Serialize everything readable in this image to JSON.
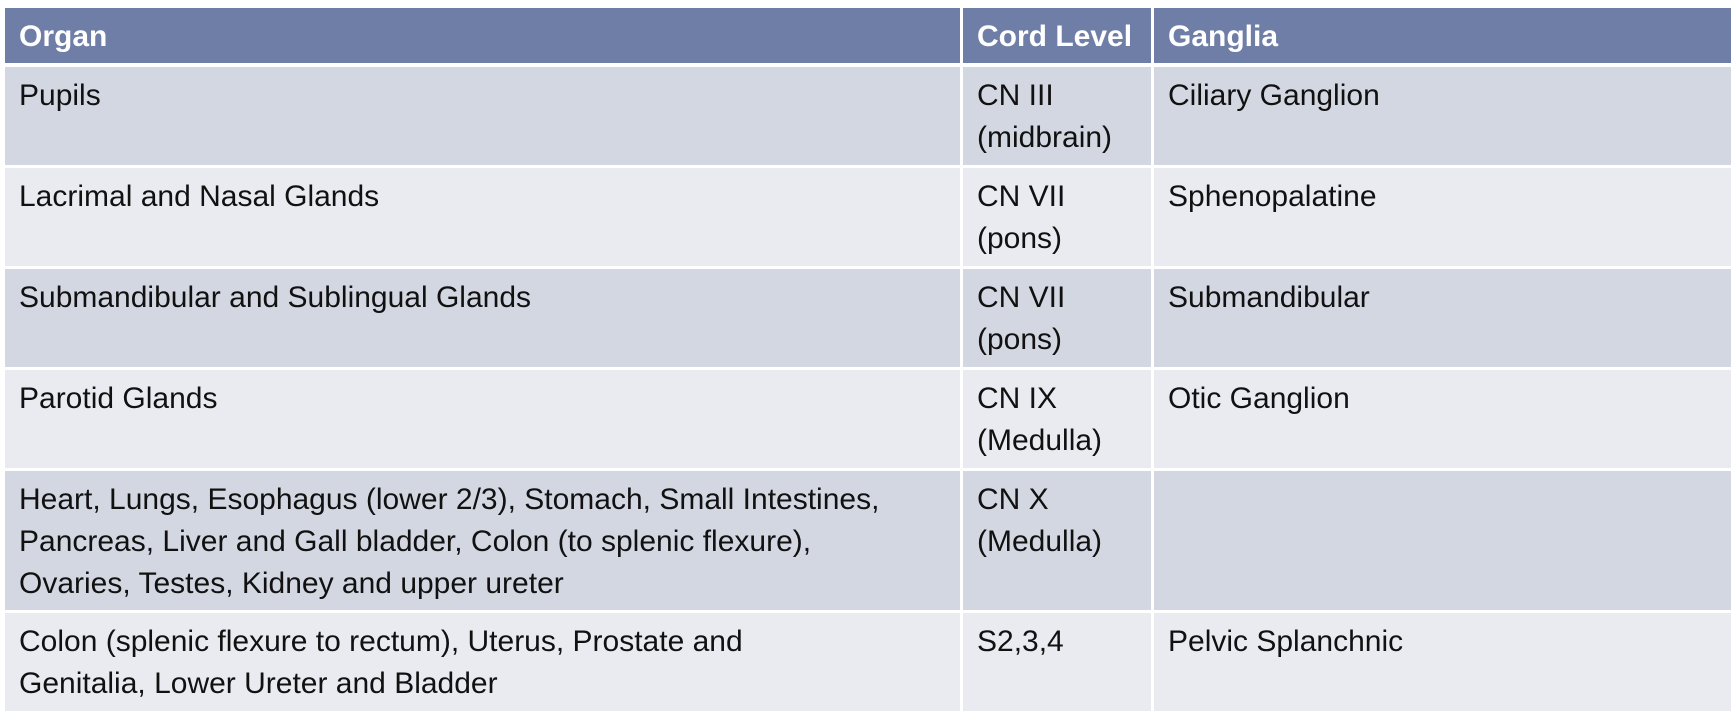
{
  "table": {
    "headers": [
      "Organ",
      "Cord Level",
      "Ganglia"
    ],
    "rows": [
      {
        "organ": "Pupils",
        "cord_level_line1": "CN III",
        "cord_level_line2": "(midbrain)",
        "ganglia": "Ciliary Ganglion"
      },
      {
        "organ": "Lacrimal and Nasal Glands",
        "cord_level_line1": "CN VII",
        "cord_level_line2": "(pons)",
        "ganglia": "Sphenopalatine"
      },
      {
        "organ": "Submandibular and Sublingual Glands",
        "cord_level_line1": "CN VII",
        "cord_level_line2": "(pons)",
        "ganglia": "Submandibular"
      },
      {
        "organ": "Parotid Glands",
        "cord_level_line1": "CN IX",
        "cord_level_line2": "(Medulla)",
        "ganglia": "Otic Ganglion"
      },
      {
        "organ_line1": "Heart, Lungs, Esophagus (lower 2/3), Stomach, Small Intestines,",
        "organ_line2": "Pancreas, Liver and Gall bladder, Colon (to splenic flexure),",
        "organ_line3": "Ovaries, Testes, Kidney and upper ureter",
        "cord_level_line1": "CN X",
        "cord_level_line2": "(Medulla)",
        "ganglia": ""
      },
      {
        "organ_line1": "Colon (splenic flexure to rectum), Uterus, Prostate and",
        "organ_line2": "Genitalia, Lower Ureter and Bladder",
        "cord_level": "S2,3,4",
        "ganglia": "Pelvic Splanchnic"
      }
    ]
  },
  "colors": {
    "header_bg": "#6f7ea6",
    "row_odd_bg": "#d3d7e2",
    "row_even_bg": "#e9ebf1",
    "header_text": "#ffffff"
  }
}
